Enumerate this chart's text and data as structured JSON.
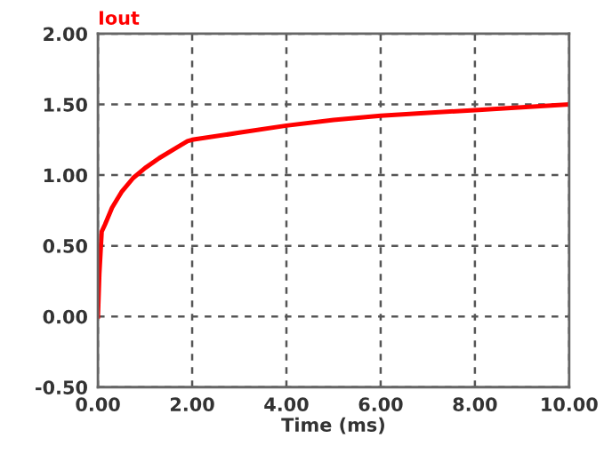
{
  "chart_data": {
    "type": "line",
    "xlabel": "Time (ms)",
    "xlim": [
      0,
      10
    ],
    "xticks": [
      {
        "value": 0,
        "label": "0.00"
      },
      {
        "value": 2,
        "label": "2.00"
      },
      {
        "value": 4,
        "label": "4.00"
      },
      {
        "value": 6,
        "label": "6.00"
      },
      {
        "value": 8,
        "label": "8.00"
      },
      {
        "value": 10,
        "label": "10.00"
      }
    ],
    "ylim": [
      -0.5,
      2
    ],
    "yticks": [
      {
        "value": -0.5,
        "label": "-0.50"
      },
      {
        "value": 0,
        "label": "0.00"
      },
      {
        "value": 0.5,
        "label": "0.50"
      },
      {
        "value": 1,
        "label": "1.00"
      },
      {
        "value": 1.5,
        "label": "1.50"
      },
      {
        "value": 2,
        "label": "2.00"
      }
    ],
    "grid": true,
    "marker": "none",
    "line_style": "solid",
    "series": [
      {
        "name": "Iout",
        "color": "#ff0000",
        "x": [
          0,
          0.03,
          0.08,
          0.15,
          0.3,
          0.5,
          0.75,
          1.0,
          1.3,
          1.6,
          1.9,
          2,
          3,
          4,
          5,
          6,
          7,
          8,
          9,
          10
        ],
        "values": [
          0,
          0.3,
          0.6,
          0.65,
          0.77,
          0.88,
          0.98,
          1.05,
          1.12,
          1.18,
          1.24,
          1.25,
          1.3,
          1.35,
          1.39,
          1.42,
          1.44,
          1.46,
          1.48,
          1.5
        ]
      }
    ]
  }
}
